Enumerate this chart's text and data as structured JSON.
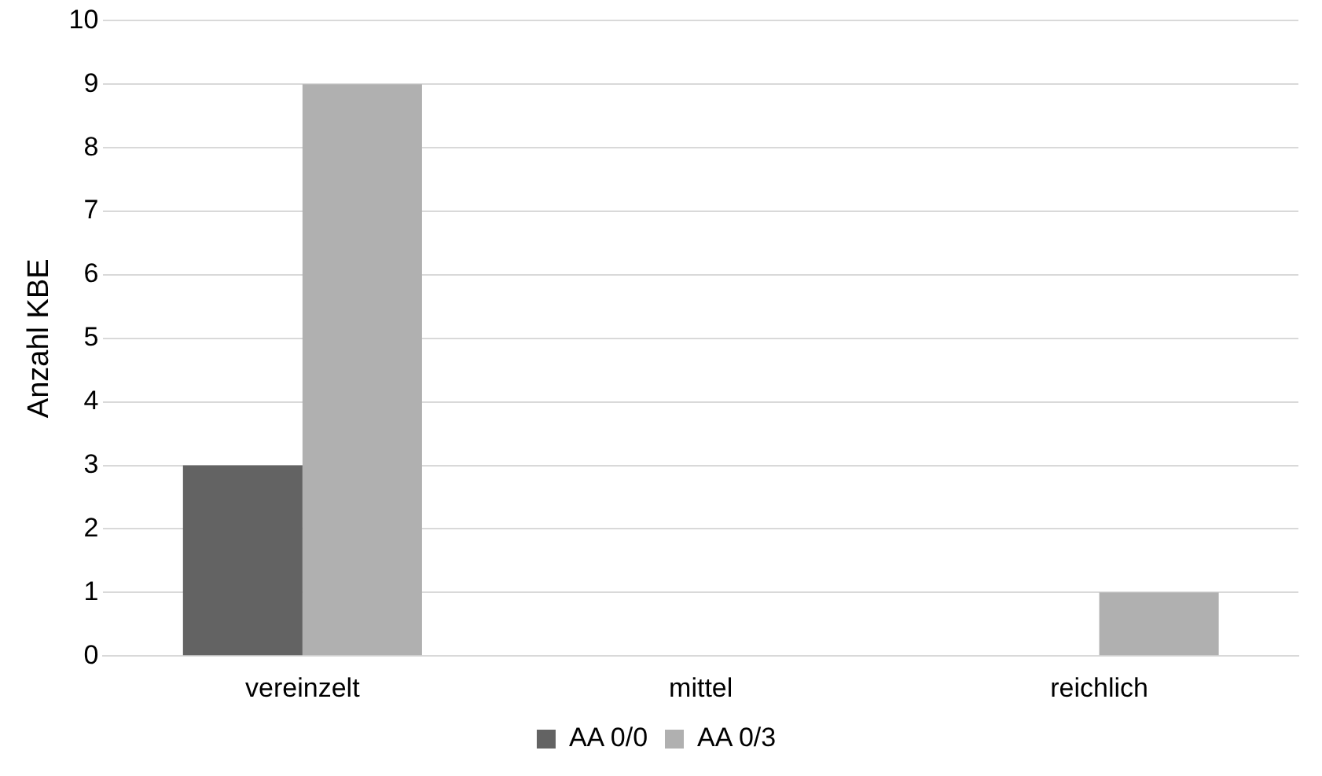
{
  "chart_data": {
    "type": "bar",
    "ylabel": "Anzahl KBE",
    "categories": [
      "vereinzelt",
      "mittel",
      "reichlich"
    ],
    "series": [
      {
        "name": "AA 0/0",
        "color": "#636363",
        "values": [
          3,
          0,
          0
        ]
      },
      {
        "name": "AA 0/3",
        "color": "#b0b0b0",
        "values": [
          9,
          0,
          1
        ]
      }
    ],
    "ylim": [
      0,
      10
    ],
    "yticks": [
      0,
      1,
      2,
      3,
      4,
      5,
      6,
      7,
      8,
      9,
      10
    ],
    "grid": "y",
    "legend": "bottom"
  }
}
